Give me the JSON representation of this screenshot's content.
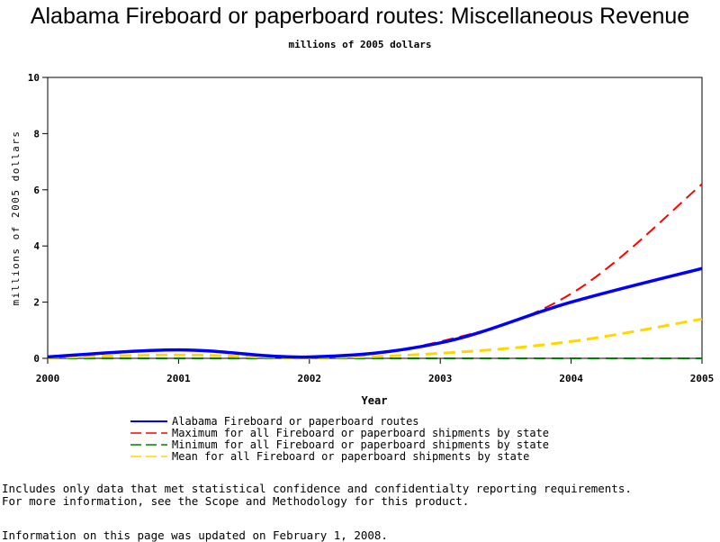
{
  "chart_data": {
    "type": "line",
    "title": "Alabama Fireboard or paperboard routes: Miscellaneous Revenue",
    "subtitle": "millions of 2005 dollars",
    "xlabel": "Year",
    "ylabel": "millions of 2005 dollars",
    "x": [
      2000,
      2001,
      2002,
      2003,
      2004,
      2005
    ],
    "xlim": [
      2000,
      2005
    ],
    "ylim": [
      0,
      10
    ],
    "yticks": [
      0,
      2,
      4,
      6,
      8,
      10
    ],
    "grid": false,
    "legend_position": "bottom",
    "series": [
      {
        "name": "Alabama Fireboard or paperboard routes",
        "values": [
          0.05,
          0.3,
          0.05,
          0.55,
          2.0,
          3.2
        ],
        "color": "#0000ff",
        "style": "solid"
      },
      {
        "name": "Maximum for all Fireboard or paperboard shipments by state",
        "values": [
          0.05,
          0.3,
          0.05,
          0.6,
          2.3,
          6.2
        ],
        "color": "#ff0000",
        "style": "dashed"
      },
      {
        "name": "Minimum for all Fireboard or paperboard shipments by state",
        "values": [
          0.0,
          0.0,
          0.0,
          0.0,
          0.0,
          0.0
        ],
        "color": "#008000",
        "style": "dashed"
      },
      {
        "name": "Mean for all Fireboard or paperboard shipments by state",
        "values": [
          0.02,
          0.12,
          0.02,
          0.18,
          0.6,
          1.4
        ],
        "color": "#ffd700",
        "style": "dashed"
      }
    ]
  },
  "footnotes": {
    "line1": "Includes only data that met statistical confidence and confidentialty reporting requirements.",
    "line2": "For more information, see the Scope and Methodology for this product.",
    "line3": "Information on this page was updated on February 1, 2008."
  }
}
